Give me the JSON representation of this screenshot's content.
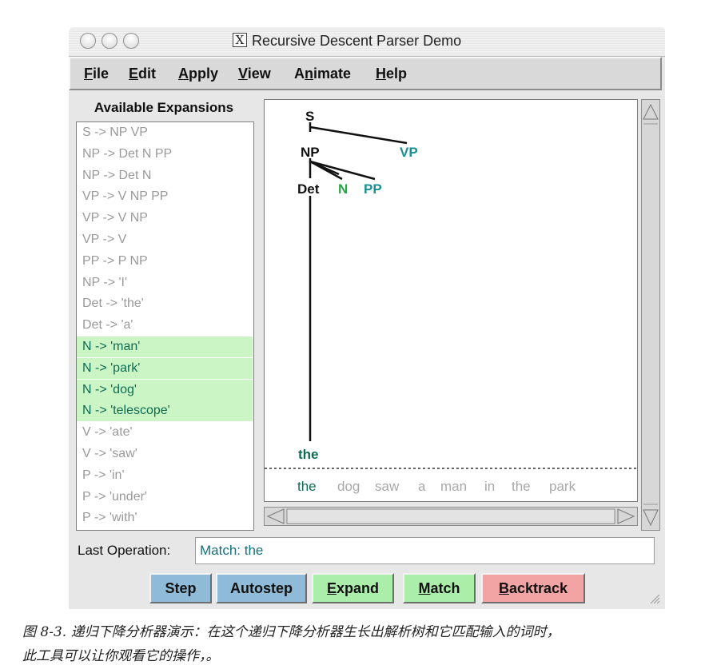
{
  "window": {
    "title": "Recursive Descent Parser Demo"
  },
  "menubar": [
    {
      "label": "File",
      "accel": "F",
      "rest": "ile"
    },
    {
      "label": "Edit",
      "accel": "E",
      "rest": "dit"
    },
    {
      "label": "Apply",
      "accel": "A",
      "rest": "pply"
    },
    {
      "label": "View",
      "accel": "V",
      "rest": "iew"
    },
    {
      "label": "Animate",
      "pre": "A",
      "accel": "n",
      "rest": "imate"
    },
    {
      "label": "Help",
      "accel": "H",
      "rest": "elp"
    }
  ],
  "expansions": {
    "title": "Available Expansions",
    "rules": [
      {
        "text": "S -> NP VP",
        "highlighted": false
      },
      {
        "text": "NP -> Det N PP",
        "highlighted": false
      },
      {
        "text": "NP -> Det N",
        "highlighted": false
      },
      {
        "text": "VP -> V NP PP",
        "highlighted": false
      },
      {
        "text": "VP -> V NP",
        "highlighted": false
      },
      {
        "text": "VP -> V",
        "highlighted": false
      },
      {
        "text": "PP -> P NP",
        "highlighted": false
      },
      {
        "text": "NP -> 'I'",
        "highlighted": false
      },
      {
        "text": "Det -> 'the'",
        "highlighted": false
      },
      {
        "text": "Det -> 'a'",
        "highlighted": false
      },
      {
        "text": "N -> 'man'",
        "highlighted": true
      },
      {
        "text": "N -> 'park'",
        "highlighted": true
      },
      {
        "text": "N -> 'dog'",
        "highlighted": true
      },
      {
        "text": "N -> 'telescope'",
        "highlighted": true
      },
      {
        "text": "V -> 'ate'",
        "highlighted": false
      },
      {
        "text": "V -> 'saw'",
        "highlighted": false
      },
      {
        "text": "P -> 'in'",
        "highlighted": false
      },
      {
        "text": "P -> 'under'",
        "highlighted": false
      },
      {
        "text": "P -> 'with'",
        "highlighted": false
      }
    ]
  },
  "tree": {
    "nodes": {
      "s": "S",
      "np": "NP",
      "vp": "VP",
      "det": "Det",
      "n": "N",
      "pp": "PP",
      "leaf": "the"
    }
  },
  "input_tokens": [
    "the",
    "dog",
    "saw",
    "a",
    "man",
    "in",
    "the",
    "park"
  ],
  "status": {
    "label": "Last Operation:",
    "value": "Match: the"
  },
  "buttons": [
    {
      "label": "Step",
      "accel": "",
      "rest": "Step",
      "color": "#8fbad8"
    },
    {
      "label": "Autostep",
      "accel": "",
      "rest": "Autostep",
      "color": "#8fbad8"
    },
    {
      "label": "Expand",
      "accel": "E",
      "rest": "xpand",
      "color": "#aaeeaa"
    },
    {
      "label": "Match",
      "accel": "M",
      "rest": "atch",
      "color": "#aaeeaa"
    },
    {
      "label": "Backtrack",
      "accel": "B",
      "rest": "acktrack",
      "color": "#f2a4a4"
    }
  ],
  "colors": {
    "matched_token": "#0f6b52",
    "frontier_node": "#1a8f8f",
    "expandable_node": "#2aa34a",
    "plain_node": "#111111",
    "unmatched_token": "#a8a8a8",
    "highlight_bg": "#ccf5c6"
  },
  "caption": {
    "line1": "图 8-3. 递归下降分析器演示：在这个递归下降分析器生长出解析树和它匹配输入的词时，",
    "line2": "此工具可以让你观看它的操作，。"
  }
}
